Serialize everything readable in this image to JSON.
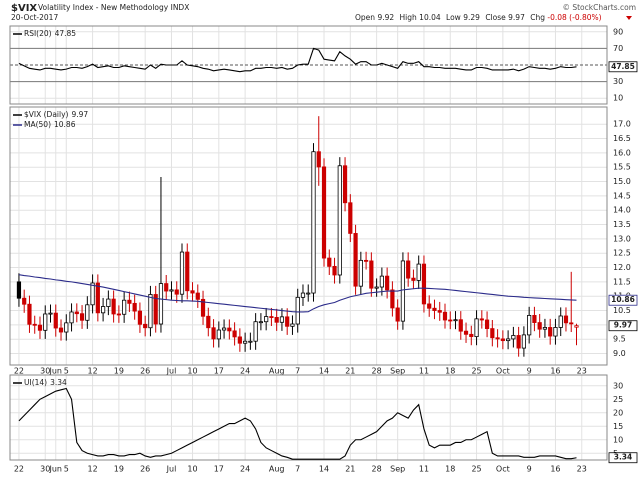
{
  "header": {
    "symbol": "$VIX",
    "name": "Volatility Index - New Methodology INDX",
    "date": "20-Oct-2017",
    "credit": "© StockCharts.com",
    "open_label": "Open",
    "high_label": "High",
    "low_label": "Low",
    "close_label": "Close",
    "chg_label": "Chg",
    "chg": "-0.08 (-0.80%)"
  },
  "chart_data": [
    {
      "type": "line",
      "ylim": [
        3,
        97
      ],
      "yticks": [
        10,
        30,
        50,
        70,
        90
      ],
      "overbought": 70,
      "oversold": 30,
      "midline": 50,
      "xlim": [
        -1.7,
        111.8
      ],
      "series": [
        {
          "name": "RSI(20)",
          "color": "#000000",
          "values": [
            52,
            49,
            46,
            45,
            44,
            46,
            46,
            45,
            44,
            45,
            47,
            47,
            46,
            48,
            51,
            47,
            48,
            49,
            47,
            47,
            49,
            48,
            47,
            46,
            45,
            50,
            46,
            51,
            50,
            50,
            50,
            55,
            50,
            49,
            48,
            46,
            45,
            43,
            44,
            45,
            44,
            43,
            42,
            43,
            43,
            46,
            46,
            47,
            47,
            46,
            47,
            45,
            46,
            50,
            51,
            51,
            70,
            68,
            57,
            56,
            55,
            66,
            61,
            57,
            51,
            54,
            54,
            50,
            50,
            52,
            50,
            48,
            46,
            54,
            52,
            52,
            54,
            48,
            48,
            47,
            47,
            46,
            46,
            46,
            45,
            44,
            44,
            47,
            47,
            46,
            44,
            44,
            44,
            44,
            45,
            43,
            45,
            48,
            47,
            46,
            46,
            45,
            46,
            48,
            47,
            47,
            47.85
          ]
        }
      ]
    },
    {
      "type": "candlestick",
      "ylim": [
        8.6,
        17.6
      ],
      "yticks": [
        {
          "value": 9,
          "label": "9.0"
        },
        9.5,
        {
          "value": 10,
          "label": "10.0"
        },
        10.5,
        {
          "value": 11,
          "label": "11.0"
        },
        11.5,
        {
          "value": 12,
          "label": "12.0"
        },
        12.5,
        {
          "value": 13,
          "label": "13.0"
        },
        13.5,
        {
          "value": 14,
          "label": "14.0"
        },
        14.5,
        {
          "value": 15,
          "label": "15.0"
        },
        15.5,
        {
          "value": 16,
          "label": "16.0"
        },
        16.5,
        {
          "value": 17,
          "label": "17.0"
        }
      ],
      "xlim": [
        -1.7,
        111.8
      ],
      "xticks": [
        {
          "value": 0,
          "label": "22"
        },
        {
          "value": 5,
          "label": "30"
        },
        {
          "value": 7,
          "label": "Jun"
        },
        {
          "value": 9,
          "label": "5"
        },
        {
          "value": 14,
          "label": "12"
        },
        {
          "value": 19,
          "label": "19"
        },
        {
          "value": 24,
          "label": "26"
        },
        {
          "value": 29,
          "label": "Jul"
        },
        {
          "value": 33,
          "label": "10"
        },
        {
          "value": 38,
          "label": "17"
        },
        {
          "value": 43,
          "label": "24"
        },
        {
          "value": 49,
          "label": "Aug"
        },
        {
          "value": 53,
          "label": "7"
        },
        {
          "value": 58,
          "label": "14"
        },
        {
          "value": 63,
          "label": "21"
        },
        {
          "value": 68,
          "label": "28"
        },
        {
          "value": 72,
          "label": "Sep"
        },
        {
          "value": 77,
          "label": "11"
        },
        {
          "value": 82,
          "label": "18"
        },
        {
          "value": 87,
          "label": "25"
        },
        {
          "value": 92,
          "label": "Oct"
        },
        {
          "value": 97,
          "label": "9"
        },
        {
          "value": 102,
          "label": "16"
        },
        {
          "value": 107,
          "label": "23"
        }
      ],
      "series": [
        {
          "name": "$VIX (Daily)",
          "up_color": "#000000",
          "down_color": "#cc0000",
          "open": [
            11.5,
            10.93,
            10.72,
            10.02,
            9.99,
            9.81,
            10.38,
            10.41,
            9.89,
            9.75,
            10.07,
            10.45,
            10.39,
            10.16,
            10.7,
            11.46,
            10.42,
            10.64,
            10.9,
            10.38,
            10.37,
            10.86,
            10.75,
            10.48,
            10.02,
            9.9,
            11.06,
            10.03,
            11.44,
            11.18,
            11.22,
            11.07,
            12.54,
            11.19,
            11.11,
            10.89,
            10.3,
            9.9,
            9.51,
            9.82,
            9.89,
            9.79,
            9.58,
            9.36,
            9.43,
            9.43,
            10.11,
            10.11,
            10.29,
            10.26,
            10.09,
            10.28,
            9.95,
            10.03,
            10.96,
            11.11,
            11.11,
            16.04,
            15.51,
            12.33,
            12.04,
            11.74,
            15.55,
            14.26,
            13.19,
            11.35,
            12.25,
            12.23,
            11.28,
            11.32,
            11.7,
            11.22,
            10.59,
            10.13,
            12.23,
            11.63,
            11.55,
            12.12,
            10.73,
            10.58,
            10.5,
            10.44,
            10.17,
            10.15,
            10.18,
            9.78,
            9.67,
            9.59,
            10.21,
            10.17,
            9.87,
            9.55,
            9.51,
            9.45,
            9.51,
            9.63,
            9.19,
            9.65,
            10.33,
            10.08,
            9.85,
            9.91,
            9.61,
            9.91,
            10.31,
            10.07,
            9.92
          ],
          "high": [
            11.8,
            11.23,
            11.02,
            10.32,
            10.29,
            10.68,
            10.71,
            10.71,
            10.19,
            10.37,
            10.75,
            10.75,
            10.69,
            11.0,
            11.76,
            11.76,
            10.94,
            11.2,
            11.2,
            10.68,
            11.16,
            11.16,
            11.05,
            10.78,
            10.32,
            11.36,
            11.36,
            15.16,
            11.74,
            11.52,
            11.52,
            12.84,
            12.84,
            11.49,
            11.41,
            11.19,
            10.6,
            10.2,
            10.12,
            10.19,
            10.19,
            10.09,
            9.88,
            9.73,
            9.73,
            10.41,
            10.41,
            10.59,
            10.59,
            10.56,
            10.58,
            10.58,
            10.33,
            11.26,
            11.41,
            11.41,
            16.34,
            17.28,
            15.81,
            12.63,
            12.34,
            15.85,
            15.85,
            14.56,
            13.49,
            12.55,
            12.55,
            12.53,
            11.62,
            12.0,
            12.0,
            11.52,
            10.89,
            12.53,
            12.53,
            11.93,
            12.42,
            12.42,
            11.03,
            10.88,
            10.8,
            10.74,
            10.47,
            10.48,
            10.48,
            10.08,
            9.97,
            10.51,
            10.51,
            10.47,
            10.17,
            9.85,
            9.81,
            9.81,
            9.93,
            9.93,
            9.95,
            10.63,
            10.63,
            10.38,
            10.21,
            10.21,
            10.21,
            10.61,
            10.61,
            11.85,
            10.04
          ],
          "low": [
            10.63,
            10.42,
            9.72,
            9.69,
            9.51,
            9.51,
            10.08,
            9.59,
            9.45,
            9.45,
            9.77,
            10.09,
            9.86,
            9.86,
            10.4,
            10.12,
            10.12,
            10.34,
            10.08,
            10.07,
            10.07,
            10.45,
            10.18,
            9.72,
            9.6,
            9.6,
            9.73,
            9.73,
            10.88,
            10.88,
            10.77,
            10.77,
            10.89,
            10.81,
            10.59,
            10.0,
            9.6,
            9.21,
            9.21,
            9.52,
            9.49,
            9.28,
            9.06,
            9.06,
            9.13,
            9.13,
            9.81,
            9.81,
            9.96,
            9.79,
            9.79,
            9.65,
            9.65,
            9.73,
            10.66,
            10.81,
            10.81,
            14.85,
            12.03,
            11.74,
            11.44,
            11.44,
            13.96,
            12.89,
            11.05,
            11.05,
            11.93,
            10.98,
            10.98,
            11.02,
            10.92,
            10.29,
            9.83,
            9.83,
            11.33,
            11.25,
            11.25,
            10.43,
            10.28,
            10.2,
            10.14,
            9.87,
            9.85,
            9.85,
            9.48,
            9.37,
            9.29,
            9.29,
            9.87,
            9.57,
            9.25,
            9.21,
            9.15,
            9.15,
            9.21,
            8.89,
            8.89,
            9.35,
            9.78,
            9.55,
            9.55,
            9.31,
            9.31,
            9.61,
            9.77,
            9.75,
            9.29
          ],
          "close": [
            10.93,
            10.72,
            10.02,
            9.99,
            9.81,
            10.38,
            10.41,
            9.89,
            9.75,
            10.07,
            10.45,
            10.39,
            10.16,
            10.7,
            11.46,
            10.42,
            10.64,
            10.9,
            10.38,
            10.37,
            10.86,
            10.75,
            10.48,
            10.02,
            9.9,
            11.06,
            10.03,
            11.44,
            11.18,
            11.22,
            11.07,
            12.54,
            11.19,
            11.11,
            10.89,
            10.3,
            9.9,
            9.51,
            9.82,
            9.89,
            9.79,
            9.58,
            9.36,
            9.43,
            9.43,
            10.11,
            10.11,
            10.29,
            10.26,
            10.09,
            10.28,
            9.95,
            10.03,
            10.96,
            11.11,
            11.11,
            16.04,
            15.51,
            12.33,
            12.04,
            11.74,
            15.55,
            14.26,
            13.19,
            11.35,
            12.25,
            12.23,
            11.28,
            11.32,
            11.7,
            11.22,
            10.59,
            10.13,
            12.23,
            11.63,
            11.55,
            12.12,
            10.73,
            10.58,
            10.5,
            10.44,
            10.17,
            10.15,
            10.18,
            9.78,
            9.67,
            9.59,
            10.21,
            10.17,
            9.87,
            9.55,
            9.51,
            9.45,
            9.51,
            9.63,
            9.19,
            9.65,
            10.33,
            10.08,
            9.85,
            9.91,
            9.61,
            9.91,
            10.31,
            10.07,
            10.05,
            9.97
          ]
        },
        {
          "name": "MA(50)",
          "color": "#2b2b8a",
          "values": [
            11.75,
            11.72,
            11.7,
            11.67,
            11.65,
            11.62,
            11.6,
            11.57,
            11.55,
            11.52,
            11.5,
            11.47,
            11.44,
            11.41,
            11.38,
            11.35,
            11.32,
            11.28,
            11.24,
            11.2,
            11.16,
            11.12,
            11.08,
            11.04,
            11.0,
            10.96,
            10.92,
            10.9,
            10.88,
            10.86,
            10.85,
            10.84,
            10.84,
            10.83,
            10.82,
            10.8,
            10.78,
            10.76,
            10.74,
            10.72,
            10.7,
            10.68,
            10.66,
            10.64,
            10.62,
            10.6,
            10.58,
            10.56,
            10.54,
            10.52,
            10.5,
            10.48,
            10.46,
            10.45,
            10.45,
            10.46,
            10.56,
            10.64,
            10.7,
            10.74,
            10.78,
            10.86,
            10.92,
            10.98,
            11.02,
            11.06,
            11.1,
            11.12,
            11.14,
            11.16,
            11.18,
            11.18,
            11.18,
            11.22,
            11.24,
            11.26,
            11.28,
            11.28,
            11.27,
            11.26,
            11.25,
            11.24,
            11.22,
            11.2,
            11.18,
            11.16,
            11.14,
            11.12,
            11.1,
            11.08,
            11.06,
            11.04,
            11.02,
            11.0,
            10.99,
            10.98,
            10.96,
            10.95,
            10.94,
            10.93,
            10.92,
            10.91,
            10.9,
            10.89,
            10.88,
            10.87,
            10.86
          ]
        }
      ]
    },
    {
      "type": "line",
      "ylim": [
        2.5,
        34
      ],
      "yticks": [
        5,
        10,
        15,
        20,
        25,
        30
      ],
      "xlim": [
        -1.7,
        111.8
      ],
      "xticks": [
        {
          "value": 0,
          "label": "22"
        },
        {
          "value": 5,
          "label": "30"
        },
        {
          "value": 7,
          "label": "Jun"
        },
        {
          "value": 9,
          "label": "5"
        },
        {
          "value": 14,
          "label": "12"
        },
        {
          "value": 19,
          "label": "19"
        },
        {
          "value": 24,
          "label": "26"
        },
        {
          "value": 29,
          "label": "Jul"
        },
        {
          "value": 33,
          "label": "10"
        },
        {
          "value": 38,
          "label": "17"
        },
        {
          "value": 43,
          "label": "24"
        },
        {
          "value": 49,
          "label": "Aug"
        },
        {
          "value": 53,
          "label": "7"
        },
        {
          "value": 58,
          "label": "14"
        },
        {
          "value": 63,
          "label": "21"
        },
        {
          "value": 68,
          "label": "28"
        },
        {
          "value": 72,
          "label": "Sep"
        },
        {
          "value": 77,
          "label": "11"
        },
        {
          "value": 82,
          "label": "18"
        },
        {
          "value": 87,
          "label": "25"
        },
        {
          "value": 92,
          "label": "Oct"
        },
        {
          "value": 97,
          "label": "9"
        },
        {
          "value": 102,
          "label": "16"
        },
        {
          "value": 107,
          "label": "23"
        }
      ],
      "series": [
        {
          "name": "UI(14)",
          "color": "#000000",
          "values": [
            17,
            19,
            21,
            23,
            25,
            26,
            27,
            28,
            28.5,
            29,
            25,
            9,
            6,
            5,
            4.5,
            4,
            4,
            4.5,
            4.5,
            4,
            4,
            4.5,
            4.5,
            5,
            4,
            3.5,
            4,
            4,
            4.5,
            5,
            6,
            7,
            8,
            9,
            10,
            11,
            12,
            13,
            14,
            15,
            16,
            16,
            17,
            18,
            17,
            14,
            9,
            7,
            6,
            5,
            4,
            3.5,
            2.8,
            2.8,
            2.8,
            2.8,
            2.8,
            2.8,
            2.8,
            2.8,
            2.8,
            2.8,
            4,
            8,
            10,
            10,
            11,
            12,
            13,
            15,
            17,
            18,
            20,
            19,
            18,
            21,
            23,
            14,
            8,
            7,
            8,
            8,
            8,
            9,
            9,
            10,
            10,
            11,
            12,
            13,
            5,
            4,
            4,
            4,
            4,
            4,
            3.5,
            3.5,
            3.5,
            4,
            4,
            4,
            4,
            3.5,
            3,
            3,
            3.34
          ]
        }
      ]
    }
  ]
}
